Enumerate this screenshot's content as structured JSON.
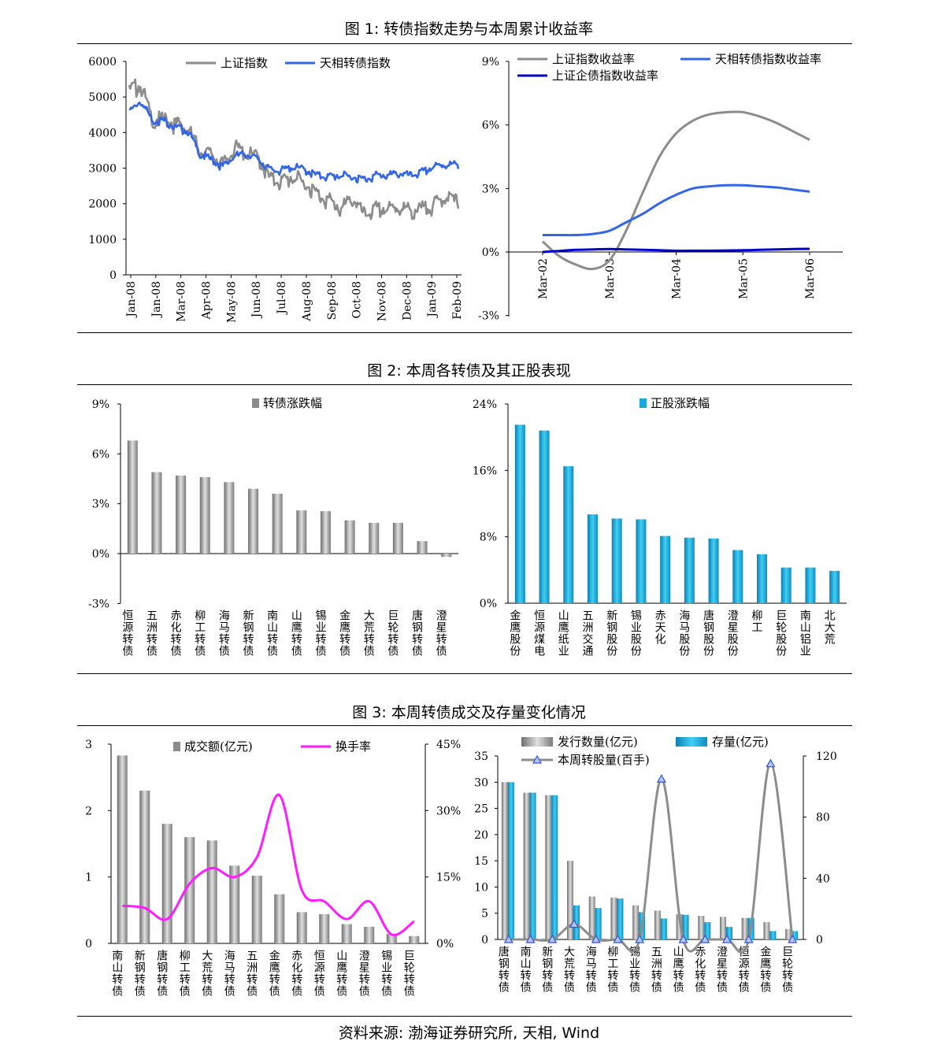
{
  "figures": [
    {
      "title": "图 1:  转债指数走势与本周累计收益率"
    },
    {
      "title": "图 2:  本周各转债及其正股表现"
    },
    {
      "title": "图 3:  本周转债成交及存量变化情况"
    }
  ],
  "source": "资料来源:  渤海证券研究所, 天相, Wind",
  "colors": {
    "gray": "#8c8c8c",
    "blue": "#3366e6",
    "darkblue": "#0000cc",
    "teal": "#1aa7d6",
    "magenta": "#ff1aff",
    "bargray": "#a6a6a6"
  },
  "chart_data": [
    {
      "type": "line",
      "id": "index_trend",
      "series": [
        {
          "name": "上证指数"
        },
        {
          "name": "天相转债指数"
        }
      ],
      "x_labels": [
        "Jan-08",
        "Jan-08",
        "Mar-08",
        "Apr-08",
        "May-08",
        "Jun-08",
        "Jul-08",
        "Aug-08",
        "Sep-08",
        "Oct-08",
        "Nov-08",
        "Dec-08",
        "Jan-09",
        "Feb-09"
      ],
      "y_ticks": [
        0,
        1000,
        2000,
        3000,
        4000,
        5000,
        6000
      ],
      "ylim": [
        0,
        6000
      ],
      "x_points": [
        0,
        0.5,
        1,
        1.5,
        2,
        2.5,
        3,
        3.5,
        4,
        4.5,
        5,
        5.5,
        6,
        6.5,
        7,
        7.5,
        8,
        8.5,
        9,
        9.5,
        10,
        10.5,
        11,
        11.5,
        12,
        12.5,
        13,
        13.5,
        14
      ],
      "sh_values": [
        5300,
        5450,
        4400,
        4500,
        4350,
        4200,
        3600,
        3500,
        3200,
        3700,
        3500,
        3400,
        2800,
        2750,
        2850,
        2650,
        2400,
        2200,
        1950,
        2250,
        1800,
        1950,
        1950,
        2000,
        1900,
        1950,
        2100,
        2300,
        2150
      ],
      "tx_values": [
        4650,
        4950,
        4400,
        4400,
        4200,
        4100,
        3450,
        3300,
        3100,
        3400,
        3450,
        3300,
        3000,
        3000,
        3080,
        3000,
        2850,
        2820,
        2850,
        2800,
        2750,
        2850,
        2850,
        2900,
        2850,
        2950,
        3100,
        3150,
        3150
      ]
    },
    {
      "type": "line",
      "id": "weekly_return",
      "series": [
        {
          "name": "上证指数收益率"
        },
        {
          "name": "天相转债指数收益率"
        },
        {
          "name": "上证企债指数收益率"
        }
      ],
      "x_labels": [
        "Mar-02",
        "Mar-03",
        "Mar-04",
        "Mar-05",
        "Mar-06"
      ],
      "y_ticks": [
        "9%",
        "6%",
        "3%",
        "0%",
        "-3%"
      ],
      "ylim": [
        -3,
        9
      ],
      "x": [
        0,
        0.25,
        0.5,
        0.75,
        1,
        1.25,
        1.5,
        1.75,
        2,
        2.25,
        2.5,
        2.75,
        3,
        3.25,
        3.5,
        3.75,
        4
      ],
      "sh": [
        0.5,
        -0.2,
        -0.6,
        -0.8,
        -0.4,
        1.0,
        2.8,
        4.5,
        5.6,
        6.2,
        6.5,
        6.6,
        6.6,
        6.4,
        6.1,
        5.7,
        5.3
      ],
      "tx": [
        0.8,
        0.8,
        0.8,
        0.85,
        1.0,
        1.4,
        1.8,
        2.3,
        2.7,
        3.0,
        3.1,
        3.15,
        3.15,
        3.1,
        3.05,
        2.95,
        2.85
      ],
      "qz": [
        0.0,
        0.05,
        0.1,
        0.12,
        0.14,
        0.12,
        0.1,
        0.08,
        0.06,
        0.06,
        0.06,
        0.07,
        0.08,
        0.1,
        0.12,
        0.14,
        0.15
      ]
    },
    {
      "type": "bar",
      "id": "cb_change",
      "series": [
        {
          "name": "转债涨跌幅"
        }
      ],
      "categories": [
        "恒源转债",
        "五洲转债",
        "赤化转债",
        "柳工转债",
        "海马转债",
        "新钢转债",
        "南山转债",
        "山鹰转债",
        "锡业转债",
        "金鹰转债",
        "大荒转债",
        "巨轮转债",
        "唐钢转债",
        "澄星转债"
      ],
      "values": [
        6.8,
        4.9,
        4.7,
        4.6,
        4.3,
        3.9,
        3.6,
        2.6,
        2.55,
        2.0,
        1.85,
        1.85,
        0.75,
        -0.2
      ],
      "y_ticks": [
        "9%",
        "6%",
        "3%",
        "0%",
        "-3%"
      ],
      "ylim": [
        -3,
        9
      ]
    },
    {
      "type": "bar",
      "id": "stock_change",
      "series": [
        {
          "name": "正股涨跌幅"
        }
      ],
      "categories": [
        "金鹰股份",
        "恒源煤电",
        "山鹰纸业",
        "五洲交通",
        "新钢股份",
        "锡业股份",
        "赤天化",
        "海马股份",
        "唐钢股份",
        "澄星股份",
        "柳工",
        "巨轮股份",
        "南山铝业",
        "北大荒"
      ],
      "values": [
        21.5,
        20.8,
        16.5,
        10.7,
        10.2,
        10.1,
        8.1,
        7.9,
        7.8,
        6.4,
        5.9,
        4.3,
        4.3,
        3.9
      ],
      "y_ticks": [
        "24%",
        "16%",
        "8%",
        "0%"
      ],
      "ylim": [
        0,
        24
      ]
    },
    {
      "type": "bar",
      "id": "turnover",
      "series": [
        {
          "name": "成交额(亿元)"
        },
        {
          "name": "换手率"
        }
      ],
      "categories": [
        "南山转债",
        "新钢转债",
        "唐钢转债",
        "柳工转债",
        "大荒转债",
        "海马转债",
        "五洲转债",
        "金鹰转债",
        "赤化转债",
        "恒源转债",
        "山鹰转债",
        "澄星转债",
        "锡业转债",
        "巨轮转债"
      ],
      "values": [
        2.83,
        2.3,
        1.8,
        1.6,
        1.55,
        1.17,
        1.02,
        0.74,
        0.47,
        0.44,
        0.29,
        0.25,
        0.14,
        0.11
      ],
      "turnover_rate": [
        8.5,
        8.0,
        5.5,
        13.5,
        17.0,
        15.0,
        19.5,
        33.5,
        12.0,
        9.5,
        5.5,
        9.5,
        2.0,
        5.0
      ],
      "left_ticks": [
        "3",
        "2",
        "1",
        "0"
      ],
      "right_ticks": [
        "45%",
        "30%",
        "15%",
        "0%"
      ],
      "ylim": [
        0,
        3
      ],
      "y2lim": [
        0,
        45
      ]
    },
    {
      "type": "bar",
      "id": "issuance",
      "series": [
        {
          "name": "发行数量(亿元)"
        },
        {
          "name": "存量(亿元)"
        },
        {
          "name": "本周转股量(百手)"
        }
      ],
      "categories": [
        "唐钢转债",
        "南山转债",
        "新钢转债",
        "大荒转债",
        "海马转债",
        "柳工转债",
        "锡业转债",
        "五洲转债",
        "山鹰转债",
        "赤化转债",
        "澄星转债",
        "恒源转债",
        "金鹰转债",
        "巨轮转债"
      ],
      "issue": [
        30,
        28,
        27.5,
        15,
        8.2,
        8.0,
        6.5,
        5.5,
        4.8,
        4.5,
        4.3,
        4.1,
        3.3,
        2.0
      ],
      "stock": [
        30,
        28,
        27.5,
        6.5,
        6.0,
        7.8,
        5.2,
        4.0,
        4.7,
        3.3,
        2.4,
        4.1,
        1.6,
        1.6
      ],
      "conversion": [
        0,
        0,
        0,
        10,
        0,
        0,
        0,
        105,
        0,
        0,
        0,
        0,
        115,
        0
      ],
      "left_ticks": [
        "35",
        "30",
        "25",
        "20",
        "15",
        "10",
        "5",
        "0"
      ],
      "right_ticks": [
        "120",
        "80",
        "40",
        "0"
      ],
      "ylim": [
        0,
        35
      ],
      "y2lim": [
        0,
        120
      ]
    }
  ]
}
